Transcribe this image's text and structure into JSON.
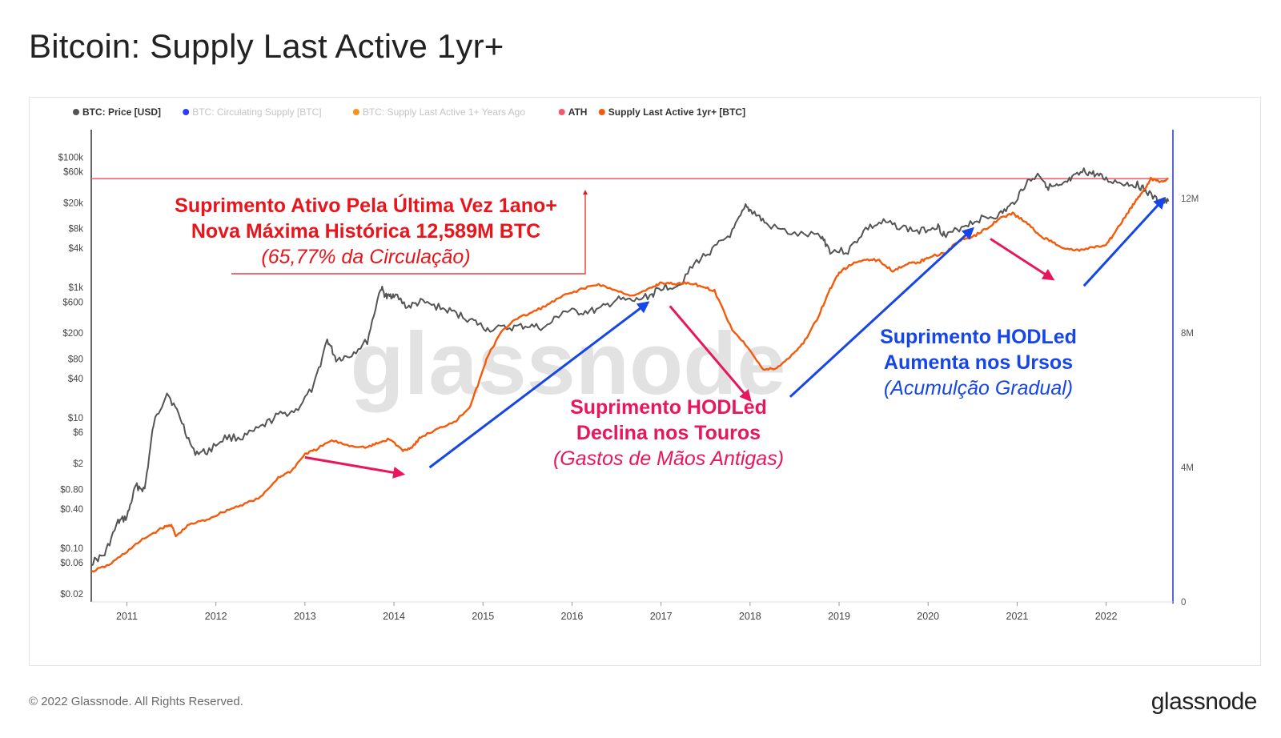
{
  "title": "Bitcoin: Supply Last Active 1yr+",
  "footer": {
    "copyright": "© 2022 Glassnode. All Rights Reserved.",
    "logo": "glassnode"
  },
  "chart_data": {
    "type": "line",
    "title": "Bitcoin: Supply Last Active 1yr+",
    "watermark": "glassnode",
    "legend": [
      {
        "label": "BTC: Price [USD]",
        "color": "#555555",
        "active": true
      },
      {
        "label": "BTC: Circulating Supply [BTC]",
        "color": "#2e3df5",
        "active": false
      },
      {
        "label": "BTC: Supply Last Active 1+ Years Ago",
        "color": "#f7931a",
        "active": false
      },
      {
        "label": "ATH",
        "color": "#f05a6e",
        "active": true
      },
      {
        "label": "Supply Last Active 1yr+ [BTC]",
        "color": "#f55a0a",
        "active": true
      }
    ],
    "x_axis": {
      "min": 2010.6,
      "max": 2022.75,
      "ticks": [
        "2011",
        "2012",
        "2013",
        "2014",
        "2015",
        "2016",
        "2017",
        "2018",
        "2019",
        "2020",
        "2021",
        "2022"
      ]
    },
    "y_left": {
      "scale": "log",
      "min": 0.015,
      "max": 250000,
      "ticks": [
        {
          "value": 100000,
          "label": "$100k"
        },
        {
          "value": 60000,
          "label": "$60k"
        },
        {
          "value": 20000,
          "label": "$20k"
        },
        {
          "value": 8000,
          "label": "$8k"
        },
        {
          "value": 4000,
          "label": "$4k"
        },
        {
          "value": 1000,
          "label": "$1k"
        },
        {
          "value": 600,
          "label": "$600"
        },
        {
          "value": 200,
          "label": "$200"
        },
        {
          "value": 80,
          "label": "$80"
        },
        {
          "value": 40,
          "label": "$40"
        },
        {
          "value": 10,
          "label": "$10"
        },
        {
          "value": 6,
          "label": "$6"
        },
        {
          "value": 2,
          "label": "$2"
        },
        {
          "value": 0.8,
          "label": "$0.80"
        },
        {
          "value": 0.4,
          "label": "$0.40"
        },
        {
          "value": 0.1,
          "label": "$0.10"
        },
        {
          "value": 0.06,
          "label": "$0.06"
        },
        {
          "value": 0.02,
          "label": "$0.02"
        }
      ]
    },
    "y_right": {
      "scale": "linear",
      "min": 0,
      "max": 14000000,
      "ticks": [
        {
          "value": 12000000,
          "label": "12M"
        },
        {
          "value": 8000000,
          "label": "8M"
        },
        {
          "value": 4000000,
          "label": "4M"
        },
        {
          "value": 0,
          "label": "0"
        }
      ]
    },
    "series": [
      {
        "name": "BTC: Price [USD]",
        "axis": "left",
        "color": "#555555",
        "x": [
          2010.6,
          2010.75,
          2010.9,
          2011.0,
          2011.1,
          2011.2,
          2011.3,
          2011.45,
          2011.6,
          2011.75,
          2011.9,
          2012.1,
          2012.3,
          2012.5,
          2012.7,
          2012.9,
          2013.1,
          2013.25,
          2013.35,
          2013.5,
          2013.7,
          2013.85,
          2013.92,
          2014.0,
          2014.15,
          2014.3,
          2014.5,
          2014.7,
          2014.9,
          2015.05,
          2015.3,
          2015.5,
          2015.7,
          2015.9,
          2016.1,
          2016.3,
          2016.5,
          2016.7,
          2016.9,
          2017.0,
          2017.2,
          2017.4,
          2017.6,
          2017.8,
          2017.95,
          2018.05,
          2018.2,
          2018.5,
          2018.8,
          2018.9,
          2019.1,
          2019.3,
          2019.5,
          2019.7,
          2019.9,
          2020.1,
          2020.2,
          2020.4,
          2020.6,
          2020.8,
          2020.95,
          2021.1,
          2021.25,
          2021.35,
          2021.5,
          2021.6,
          2021.75,
          2021.87,
          2022.0,
          2022.2,
          2022.35,
          2022.45,
          2022.6,
          2022.7
        ],
        "y": [
          0.06,
          0.08,
          0.25,
          0.3,
          0.9,
          0.8,
          8,
          25,
          10,
          3,
          3,
          5,
          5,
          7,
          11,
          13,
          30,
          160,
          80,
          90,
          150,
          1000,
          700,
          800,
          500,
          600,
          500,
          400,
          300,
          230,
          240,
          260,
          240,
          430,
          420,
          450,
          650,
          620,
          780,
          1000,
          1100,
          2500,
          4000,
          7000,
          17000,
          14000,
          9000,
          6500,
          6300,
          3700,
          3600,
          8000,
          10000,
          8500,
          7200,
          9000,
          6000,
          9000,
          11500,
          13000,
          19000,
          40000,
          55000,
          35000,
          35000,
          45000,
          60000,
          55000,
          45000,
          40000,
          38000,
          30000,
          20000,
          21000
        ]
      },
      {
        "name": "Supply Last Active 1yr+ [BTC]",
        "axis": "right",
        "color": "#f55a0a",
        "x": [
          2010.6,
          2010.8,
          2011.0,
          2011.2,
          2011.4,
          2011.5,
          2011.55,
          2011.7,
          2011.9,
          2012.1,
          2012.3,
          2012.5,
          2012.7,
          2012.85,
          2013.0,
          2013.1,
          2013.3,
          2013.5,
          2013.7,
          2013.8,
          2013.95,
          2014.1,
          2014.2,
          2014.3,
          2014.5,
          2014.7,
          2014.85,
          2014.95,
          2015.05,
          2015.2,
          2015.35,
          2015.5,
          2015.7,
          2015.9,
          2016.1,
          2016.3,
          2016.5,
          2016.7,
          2016.9,
          2017.0,
          2017.15,
          2017.3,
          2017.45,
          2017.6,
          2017.8,
          2018.0,
          2018.15,
          2018.3,
          2018.45,
          2018.6,
          2018.75,
          2018.9,
          2019.0,
          2019.15,
          2019.3,
          2019.45,
          2019.6,
          2019.75,
          2019.9,
          2020.0,
          2020.2,
          2020.35,
          2020.5,
          2020.65,
          2020.8,
          2020.95,
          2021.1,
          2021.25,
          2021.4,
          2021.55,
          2021.7,
          2021.85,
          2022.0,
          2022.1,
          2022.25,
          2022.35,
          2022.45,
          2022.5,
          2022.6,
          2022.7
        ],
        "y": [
          900000,
          1100000,
          1500000,
          1900000,
          2200000,
          2300000,
          1950000,
          2300000,
          2450000,
          2700000,
          2900000,
          3100000,
          3700000,
          3900000,
          4400000,
          4500000,
          4800000,
          4650000,
          4600000,
          4700000,
          4850000,
          4500000,
          4600000,
          4900000,
          5150000,
          5400000,
          5800000,
          6500000,
          7300000,
          8000000,
          8400000,
          8550000,
          8800000,
          9100000,
          9300000,
          9450000,
          9250000,
          9100000,
          9350000,
          9500000,
          9450000,
          9500000,
          9400000,
          9250000,
          8100000,
          7500000,
          6900000,
          6950000,
          7300000,
          7700000,
          8400000,
          9300000,
          9800000,
          10050000,
          10200000,
          10150000,
          9850000,
          10050000,
          10100000,
          10250000,
          10400000,
          10750000,
          10850000,
          11100000,
          11400000,
          11550000,
          11300000,
          10900000,
          10700000,
          10500000,
          10450000,
          10550000,
          10600000,
          11000000,
          11600000,
          12000000,
          12350000,
          12589000,
          12500000,
          12589000
        ]
      }
    ],
    "reference_lines": [
      {
        "name": "ATH",
        "axis": "right",
        "value": 12589000,
        "color": "#f05a6e"
      }
    ],
    "annotations": [
      {
        "lines": [
          "Suprimento Ativo Pela Última Vez 1ano+",
          "Nova Máxima Histórica 12,589M BTC",
          "(65,77% da Circulação)"
        ],
        "color": "#e8161c"
      },
      {
        "lines": [
          "Suprimento HODLed",
          "Declina nos Touros",
          "(Gastos de Mãos Antigas)"
        ],
        "color": "#e8175d"
      },
      {
        "lines": [
          "Suprimento HODLed",
          "Aumenta nos Ursos",
          "(Acumulção Gradual)"
        ],
        "color": "#1646e8"
      }
    ],
    "arrows": [
      {
        "color": "#e8175d",
        "from": [
          2013.0,
          4300000
        ],
        "to": [
          2014.1,
          3800000
        ]
      },
      {
        "color": "#e8175d",
        "from": [
          2017.1,
          8800000
        ],
        "to": [
          2018.0,
          6000000
        ]
      },
      {
        "color": "#e8175d",
        "from": [
          2020.7,
          10800000
        ],
        "to": [
          2021.4,
          9600000
        ]
      },
      {
        "color": "#1646e8",
        "from": [
          2014.4,
          4000000
        ],
        "to": [
          2016.85,
          8900000
        ]
      },
      {
        "color": "#1646e8",
        "from": [
          2018.45,
          6100000
        ],
        "to": [
          2020.5,
          11100000
        ]
      },
      {
        "color": "#1646e8",
        "from": [
          2021.75,
          9400000
        ],
        "to": [
          2022.65,
          12000000
        ]
      },
      {
        "color": "#e8161c",
        "from": [
          2022.0,
          9600000
        ],
        "to": [
          2022.0,
          12350000
        ]
      }
    ]
  }
}
